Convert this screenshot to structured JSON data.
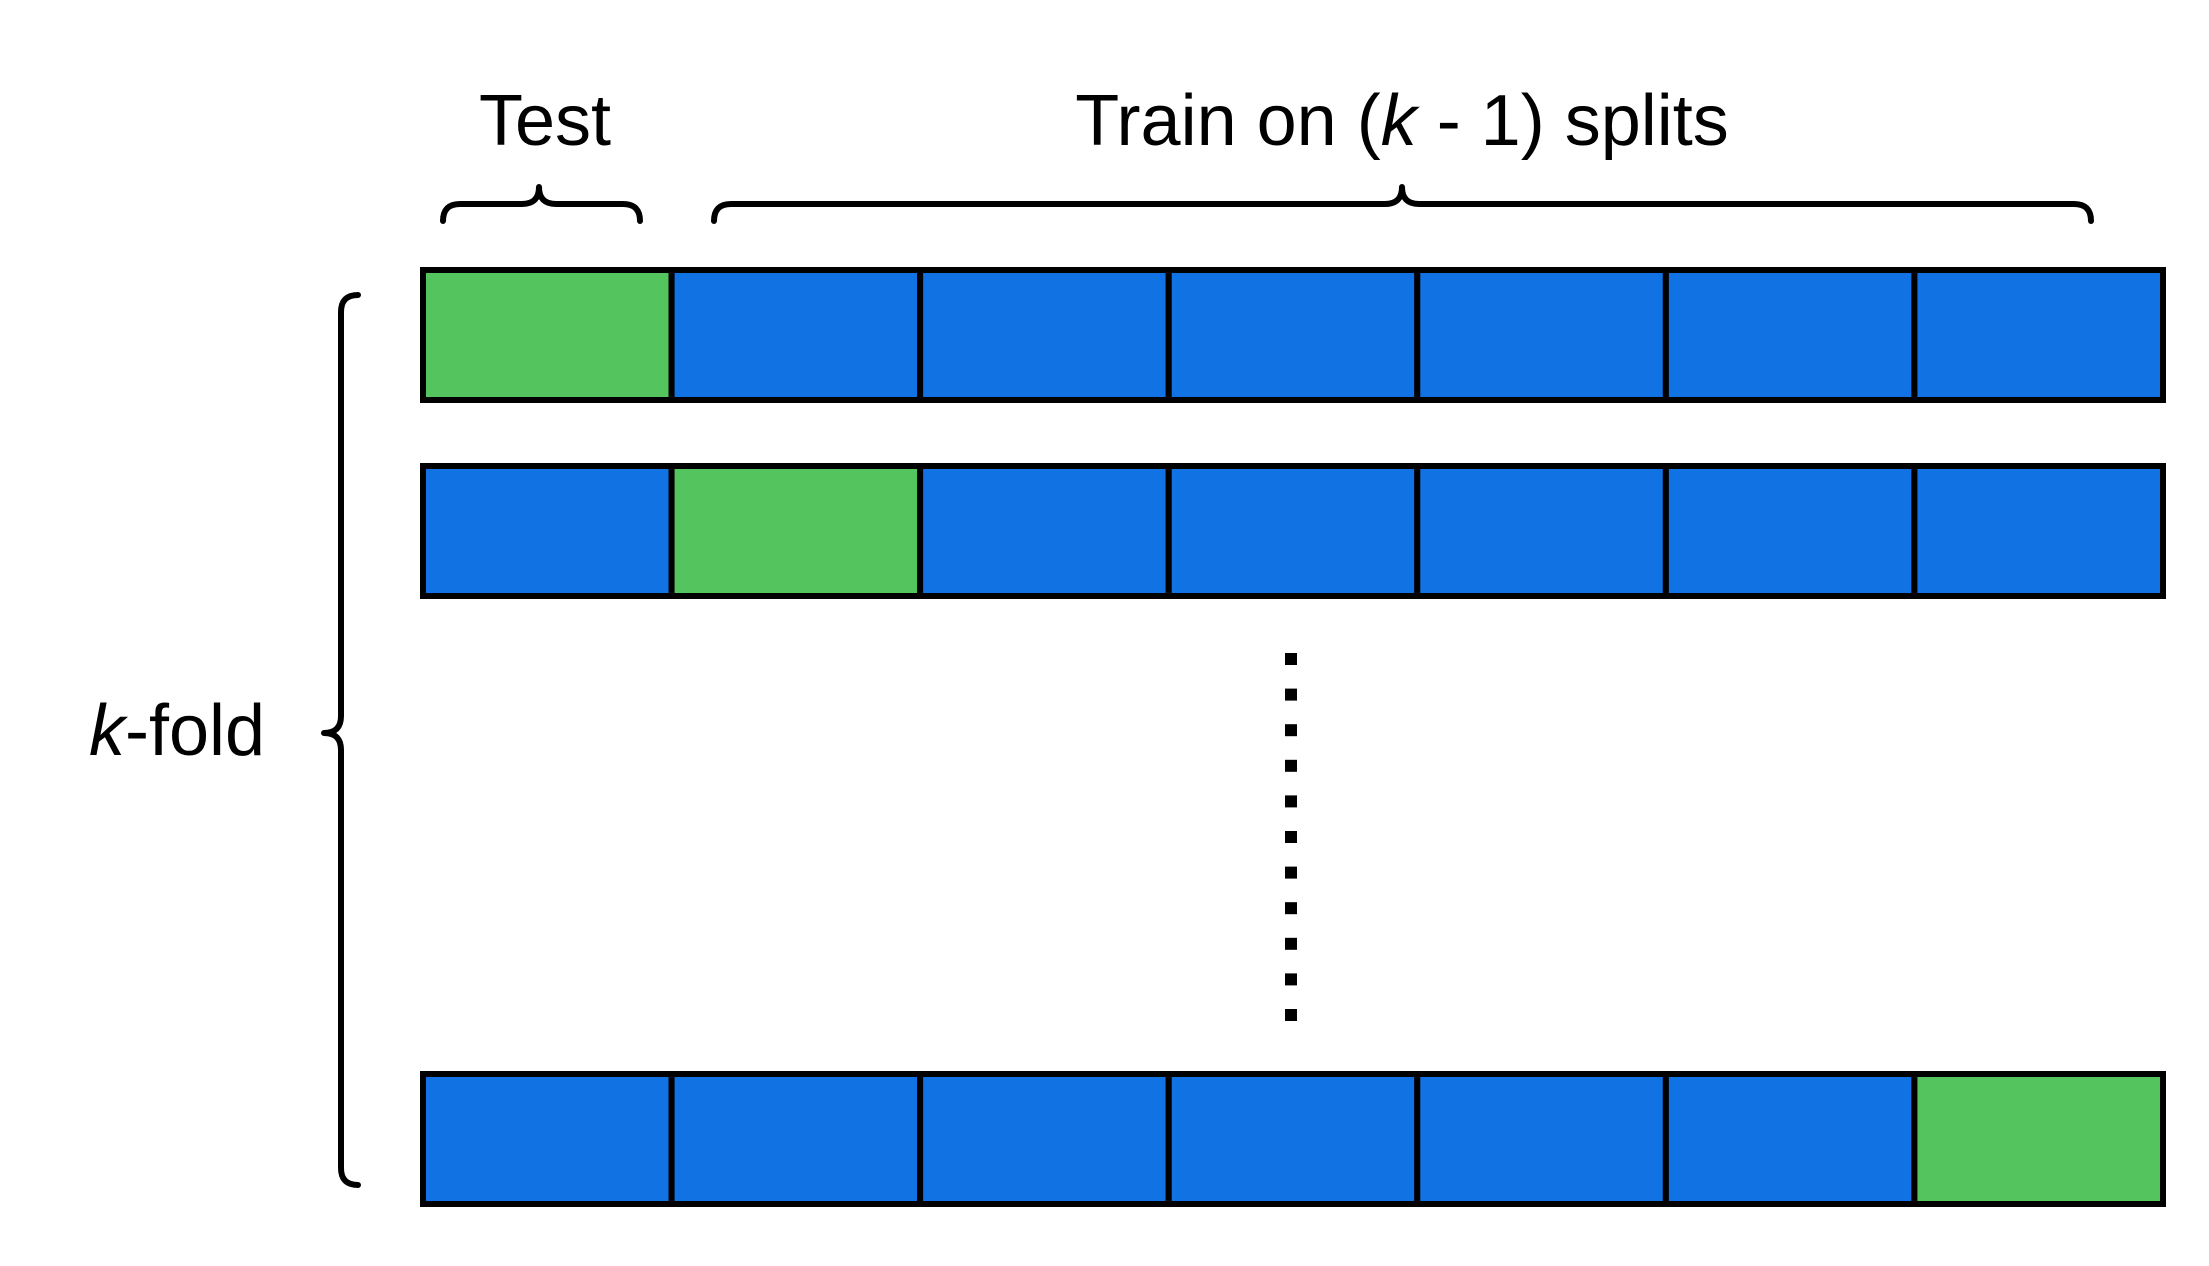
{
  "labels": {
    "test": "Test",
    "train_prefix": "Train on (",
    "train_k": "k",
    "train_suffix": " - 1) splits",
    "kfold_k": "k",
    "kfold_suffix": "-fold"
  },
  "colors": {
    "test": "#54c45e",
    "train": "#1172e3",
    "border": "#000000"
  },
  "splits_per_fold": 7,
  "folds_shown": [
    {
      "test_index": 0
    },
    {
      "test_index": 1
    },
    {
      "test_index": 6
    }
  ],
  "ellipsis_dots": 11
}
